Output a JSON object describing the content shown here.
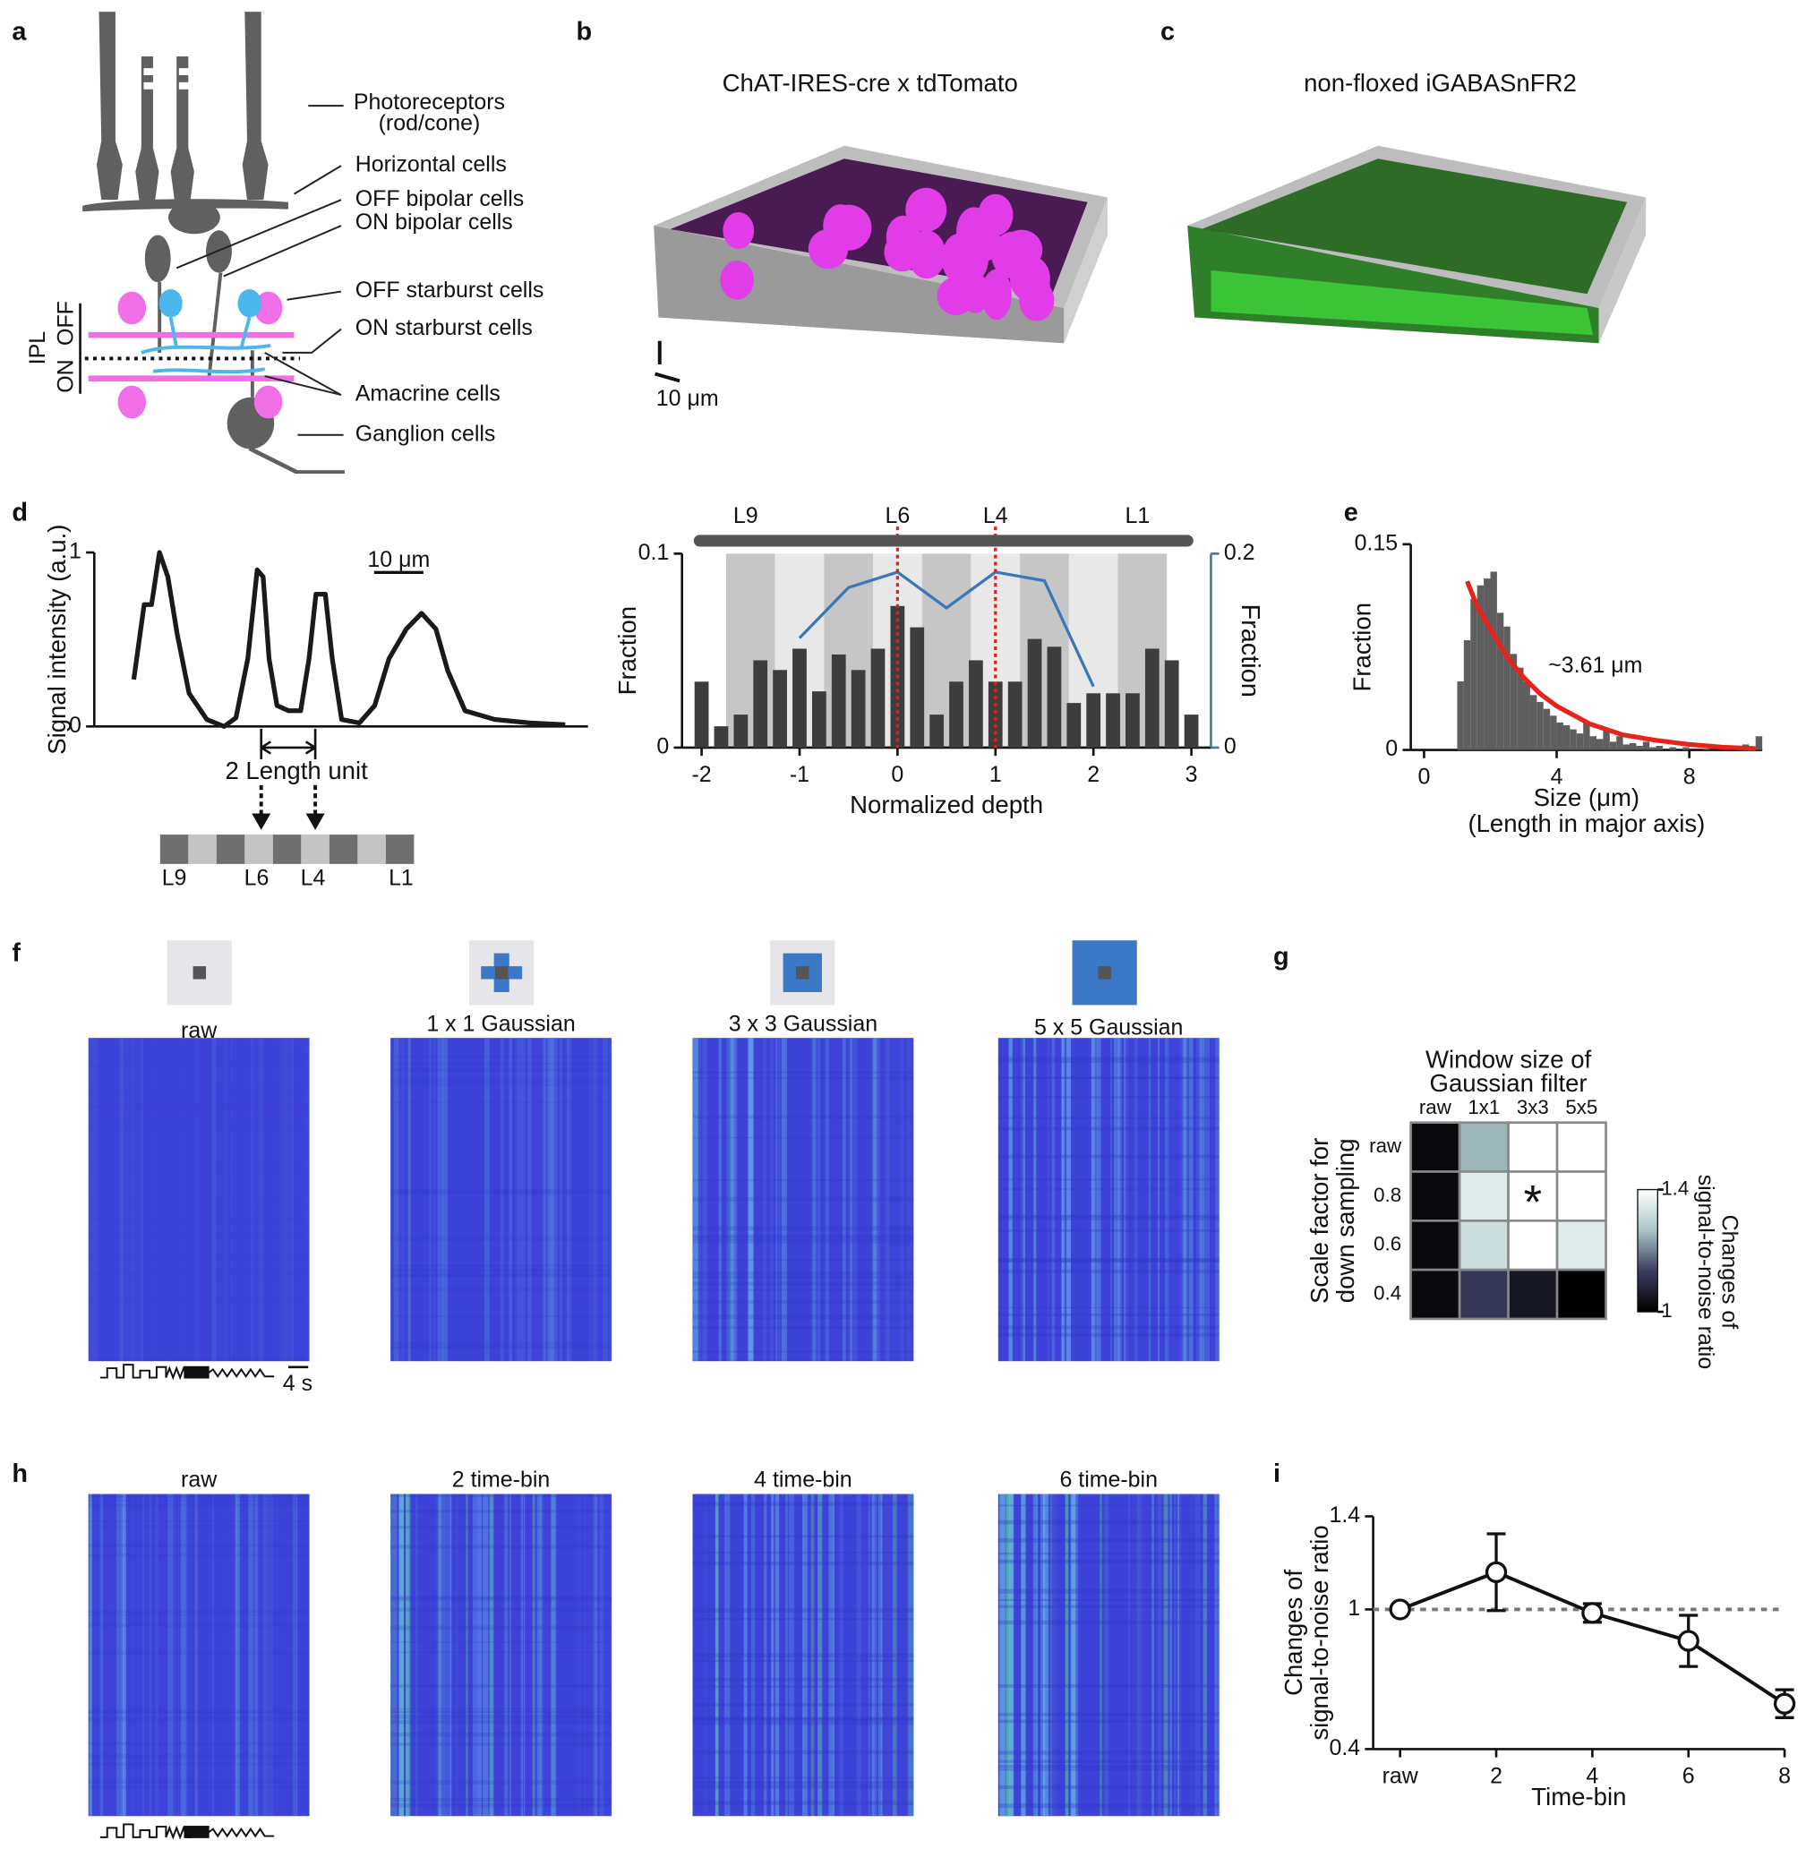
{
  "panel_letters": [
    "a",
    "b",
    "c",
    "d",
    "e",
    "f",
    "g",
    "h",
    "i"
  ],
  "panel_a": {
    "labels": [
      "Photoreceptors",
      "(rod/cone)",
      "Horizontal cells",
      "OFF bipolar cells",
      "ON bipolar cells",
      "OFF starburst cells",
      "ON starburst cells",
      "Amacrine cells",
      "Ganglion cells"
    ],
    "layer_labels": [
      "IPL",
      "ON",
      "OFF"
    ]
  },
  "panel_b": {
    "title": "ChAT-IRES-cre x tdTomato",
    "scale": "10 μm"
  },
  "panel_c": {
    "title": "non-floxed iGABASnFR2"
  },
  "panel_d": {
    "length_label": "2 Length unit",
    "layers": [
      "L9",
      "L6",
      "L4",
      "L1"
    ]
  },
  "panel_f": {
    "titles": [
      "raw",
      "1 x 1 Gaussian",
      "3 x 3 Gaussian",
      "5 x 5 Gaussian"
    ],
    "scale": "4 s"
  },
  "panel_h": {
    "titles": [
      "raw",
      "2 time-bin",
      "4 time-bin",
      "6 time-bin"
    ]
  },
  "chart_data": [
    {
      "type": "line",
      "ylabel": "Signal intensity (a.u.)",
      "x": [
        0,
        2.1,
        3.6,
        5.2,
        6.9,
        8.8,
        11.2,
        14.8,
        18.3,
        20.7,
        23.1,
        25.0,
        26.2,
        27.4,
        29.0,
        31.4,
        33.8,
        35.5,
        36.9,
        38.8,
        40.2,
        42.1,
        45.7,
        48.8,
        51.7,
        55.2,
        58.3,
        61.2,
        63.6,
        67.1,
        73.1,
        80.2,
        87.4
      ],
      "series": [
        {
          "color": "#1a1a1a",
          "values": [
            0.27,
            0.7,
            0.7,
            1.0,
            0.86,
            0.53,
            0.19,
            0.04,
            0,
            0.05,
            0.39,
            0.9,
            0.86,
            0.39,
            0.12,
            0.09,
            0.09,
            0.39,
            0.76,
            0.76,
            0.39,
            0.04,
            0.02,
            0.12,
            0.39,
            0.56,
            0.65,
            0.56,
            0.32,
            0.09,
            0.04,
            0.02,
            0.01
          ]
        }
      ],
      "xlim": [
        -8,
        92
      ],
      "ylim": [
        0,
        1
      ],
      "yticks": [
        0,
        1
      ],
      "scalebar": {
        "value": 10,
        "label": "10 μm"
      }
    },
    {
      "type": "bar",
      "xlabel": "Normalized depth",
      "ylabel": "Fraction",
      "y2label": "Fraction",
      "layer_labels": [
        "L9",
        "L6",
        "L4",
        "L1"
      ],
      "bands": [
        -1.75,
        -1.25,
        -0.75,
        -0.25,
        0.25,
        0.75,
        1.25,
        1.75,
        2.25,
        2.75
      ],
      "vlines": [
        0,
        1
      ],
      "x": [
        -2,
        -1.8,
        -1.6,
        -1.4,
        -1.2,
        -1,
        -0.8,
        -0.6,
        -0.4,
        -0.2,
        0,
        0.2,
        0.4,
        0.6,
        0.8,
        1,
        1.2,
        1.4,
        1.6,
        1.8,
        2,
        2.2,
        2.4,
        2.6,
        2.8,
        3
      ],
      "series": [
        {
          "color": "#3d3d3d",
          "values": [
            0.034,
            0.011,
            0.017,
            0.045,
            0.04,
            0.051,
            0.029,
            0.048,
            0.04,
            0.051,
            0.073,
            0.062,
            0.017,
            0.034,
            0.045,
            0.034,
            0.034,
            0.056,
            0.052,
            0.023,
            0.028,
            0.028,
            0.028,
            0.051,
            0.045,
            0.017
          ]
        },
        {
          "color": "#3b78b8",
          "axis": "y2",
          "x": [
            -1,
            -0.5,
            0,
            0.5,
            1,
            1.5,
            2
          ],
          "values": [
            0.113,
            0.165,
            0.181,
            0.144,
            0.181,
            0.172,
            0.063
          ]
        }
      ],
      "xlim": [
        -2.2,
        3.2
      ],
      "xticks": [
        -2,
        -1,
        0,
        1,
        2,
        3
      ],
      "ylim": [
        0,
        0.1
      ],
      "yticks": [
        0,
        0.1
      ],
      "y2lim": [
        0,
        0.2
      ],
      "y2ticks": [
        0,
        0.2
      ]
    },
    {
      "type": "histogram",
      "xlabel": "Size (μm)",
      "xlabel2": "(Length in major axis)",
      "ylabel": "Fraction",
      "bins": [
        1,
        1.2,
        1.4,
        1.6,
        1.8,
        2,
        2.2,
        2.4,
        2.6,
        2.8,
        3,
        3.2,
        3.4,
        3.6,
        3.8,
        4,
        4.2,
        4.4,
        4.6,
        4.8,
        5,
        5.2,
        5.4,
        5.6,
        5.8,
        6,
        6.2,
        6.4,
        6.6,
        6.8,
        7,
        7.2,
        7.4,
        7.6,
        7.8,
        8,
        8.2,
        8.4,
        8.6,
        8.8,
        9,
        9.2,
        9.4,
        9.6,
        9.8,
        10,
        10.2
      ],
      "values": [
        0.05,
        0.08,
        0.11,
        0.12,
        0.125,
        0.13,
        0.1,
        0.09,
        0.07,
        0.06,
        0.05,
        0.04,
        0.035,
        0.03,
        0.025,
        0.02,
        0.018,
        0.015,
        0.012,
        0.02,
        0.01,
        0.008,
        0.015,
        0.006,
        0.01,
        0.004,
        0.005,
        0.003,
        0.006,
        0.002,
        0.003,
        0,
        0.002,
        0,
        0.002,
        0,
        0,
        0.001,
        0,
        0,
        0.002,
        0,
        0,
        0.004,
        0,
        0.01
      ],
      "color": "#5e5e5e",
      "fit": {
        "color": "#e8231c",
        "x": [
          1.3,
          1.6,
          2,
          2.5,
          3,
          3.5,
          4,
          5,
          6,
          7,
          8,
          9,
          10
        ],
        "values": [
          0.123,
          0.105,
          0.088,
          0.068,
          0.053,
          0.041,
          0.032,
          0.019,
          0.011,
          0.007,
          0.004,
          0.002,
          0.001
        ]
      },
      "annotation": "~3.61 μm",
      "xlim": [
        -0.4,
        10.2
      ],
      "xticks": [
        0,
        4,
        8
      ],
      "ylim": [
        0,
        0.15
      ],
      "yticks": [
        0,
        0.15
      ]
    },
    {
      "type": "heatmap",
      "title": [
        "Window size of",
        "Gaussian filter"
      ],
      "ylabel": [
        "Scale factor for",
        "down sampling"
      ],
      "colorbar_label": [
        "Changes of",
        "signal-to-noise ratio"
      ],
      "columns": [
        "raw",
        "1x1",
        "3x3",
        "5x5"
      ],
      "rows": [
        "raw",
        "0.8",
        "0.6",
        "0.4"
      ],
      "values": [
        [
          1.02,
          1.25,
          1.4,
          1.4
        ],
        [
          1.02,
          1.35,
          1.4,
          1.4
        ],
        [
          1.02,
          1.32,
          1.4,
          1.35
        ],
        [
          1.02,
          1.12,
          1.05,
          1.0
        ]
      ],
      "clim": [
        1,
        1.4
      ],
      "cticks": [
        1,
        1.4
      ],
      "colormap": [
        "#000000",
        "#3c3c60",
        "#a9c6c6",
        "#ffffff"
      ],
      "star": {
        "text": "*",
        "row": 1,
        "col": 2,
        "color": "#e0359a"
      }
    },
    {
      "type": "line",
      "xlabel": "Time-bin",
      "ylabel": [
        "Changes of",
        "signal-to-noise ratio"
      ],
      "x": [
        0,
        2,
        4,
        6,
        8
      ],
      "series": [
        {
          "color": "#111111",
          "values": [
            1,
            1.16,
            0.985,
            0.865,
            0.595
          ],
          "errors": [
            0.01,
            0.165,
            0.04,
            0.11,
            0.06
          ]
        }
      ],
      "markers": true,
      "hline": 1,
      "xlim": [
        -0.56,
        8
      ],
      "xticks": [
        {
          "value": 0,
          "label": "raw"
        },
        2,
        4,
        6,
        8
      ],
      "ylim": [
        0.4,
        1.4
      ],
      "yticks": [
        0.4,
        1,
        1.4
      ]
    }
  ]
}
